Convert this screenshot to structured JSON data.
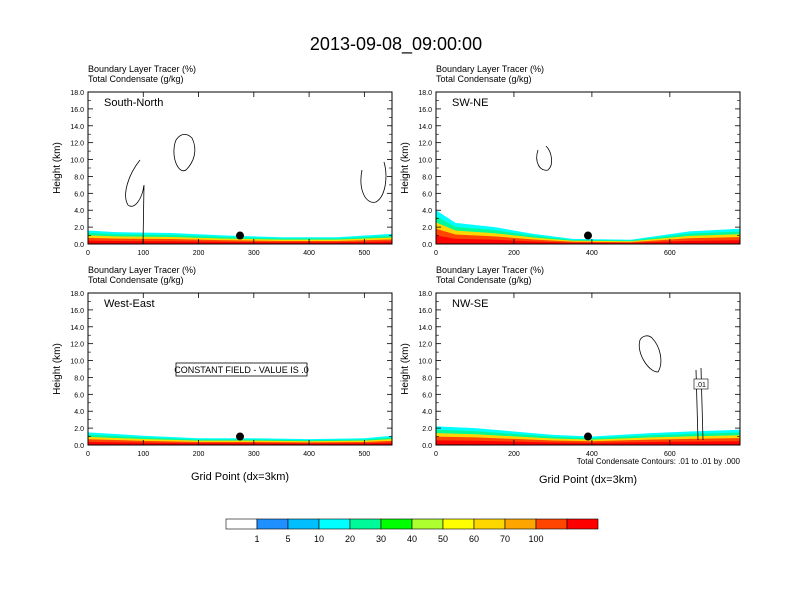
{
  "title": "2013-09-08_09:00:00",
  "subtitle_line1": "Boundary Layer Tracer    (%)",
  "subtitle_line2": "Total Condensate    (g/kg)",
  "y_label": "Height (km)",
  "x_label": "Grid Point (dx=3km)",
  "constant_field_note": "CONSTANT FIELD - VALUE IS .0",
  "contour_note": "Total Condensate Contours: .01 to .01 by .000",
  "contour_label": ".01",
  "chart_data": [
    {
      "type": "heatmap",
      "panel": "South-North",
      "xlim": [
        0,
        550
      ],
      "ylim": [
        0,
        18
      ],
      "x_ticks": [
        0,
        100,
        200,
        300,
        400,
        500
      ],
      "y_ticks": [
        "0.0",
        "2.0",
        "4.0",
        "6.0",
        "8.0",
        "10.0",
        "12.0",
        "14.0",
        "16.0",
        "18.0"
      ],
      "marker": {
        "x": 275,
        "y": 1.0
      },
      "band": [
        [
          0,
          1.6
        ],
        [
          50,
          1.4
        ],
        [
          150,
          1.3
        ],
        [
          250,
          1.0
        ],
        [
          350,
          0.8
        ],
        [
          450,
          0.8
        ],
        [
          550,
          1.2
        ]
      ]
    },
    {
      "type": "heatmap",
      "panel": "SW-NE",
      "xlim": [
        0,
        780
      ],
      "ylim": [
        0,
        18
      ],
      "x_ticks": [
        0,
        200,
        400,
        600
      ],
      "y_ticks": [
        "0.0",
        "2.0",
        "4.0",
        "6.0",
        "8.0",
        "10.0",
        "12.0",
        "14.0",
        "16.0",
        "18.0"
      ],
      "marker": {
        "x": 390,
        "y": 1.0
      },
      "band": [
        [
          0,
          4.0
        ],
        [
          50,
          2.5
        ],
        [
          150,
          2.0
        ],
        [
          250,
          1.2
        ],
        [
          350,
          0.6
        ],
        [
          500,
          0.5
        ],
        [
          650,
          1.5
        ],
        [
          780,
          1.8
        ]
      ]
    },
    {
      "type": "heatmap",
      "panel": "West-East",
      "xlim": [
        0,
        550
      ],
      "ylim": [
        0,
        18
      ],
      "x_ticks": [
        0,
        100,
        200,
        300,
        400,
        500
      ],
      "y_ticks": [
        "0.0",
        "2.0",
        "4.0",
        "6.0",
        "8.0",
        "10.0",
        "12.0",
        "14.0",
        "16.0",
        "18.0"
      ],
      "marker": {
        "x": 275,
        "y": 1.0
      },
      "band": [
        [
          0,
          1.5
        ],
        [
          100,
          1.1
        ],
        [
          200,
          0.8
        ],
        [
          300,
          0.8
        ],
        [
          400,
          0.7
        ],
        [
          500,
          0.8
        ],
        [
          550,
          1.1
        ]
      ]
    },
    {
      "type": "heatmap",
      "panel": "NW-SE",
      "xlim": [
        0,
        780
      ],
      "ylim": [
        0,
        18
      ],
      "x_ticks": [
        0,
        200,
        400,
        600
      ],
      "y_ticks": [
        "0.0",
        "2.0",
        "4.0",
        "6.0",
        "8.0",
        "10.0",
        "12.0",
        "14.0",
        "16.0",
        "18.0"
      ],
      "marker": {
        "x": 390,
        "y": 1.0
      },
      "band": [
        [
          0,
          2.2
        ],
        [
          100,
          2.0
        ],
        [
          200,
          1.6
        ],
        [
          300,
          1.2
        ],
        [
          400,
          1.0
        ],
        [
          550,
          1.4
        ],
        [
          650,
          1.6
        ],
        [
          780,
          1.8
        ]
      ]
    }
  ],
  "colorbar": {
    "labels": [
      "1",
      "5",
      "10",
      "20",
      "30",
      "40",
      "50",
      "60",
      "70",
      "100"
    ],
    "colors": [
      "#ffffff",
      "#1e90ff",
      "#00bfff",
      "#00ffff",
      "#00fa9a",
      "#00ff00",
      "#adff2f",
      "#ffff00",
      "#ffd700",
      "#ffa500",
      "#ff4500",
      "#ff0000"
    ]
  }
}
